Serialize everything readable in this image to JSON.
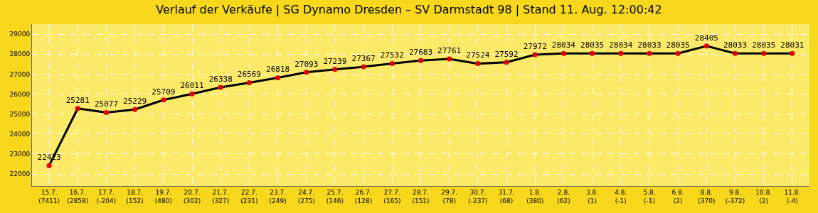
{
  "chart_data": {
    "type": "line",
    "title": "Verlauf der Verkäufe | SG Dynamo Dresden – SV Darmstadt 98 | Stand 11. Aug. 12:00:42",
    "categories": [
      "15.7.\n(7411)",
      "16.7.\n(2858)",
      "17.7.\n(-204)",
      "18.7.\n(152)",
      "19.7.\n(480)",
      "20.7.\n(302)",
      "21.7.\n(327)",
      "22.7.\n(231)",
      "23.7.\n(249)",
      "24.7.\n(275)",
      "25.7.\n(146)",
      "26.7.\n(128)",
      "27.7.\n(165)",
      "28.7.\n(151)",
      "29.7.\n(78)",
      "30.7.\n(-237)",
      "31.7.\n(68)",
      "1.8.\n(380)",
      "2.8.\n(62)",
      "3.8.\n(1)",
      "4.8.\n(-1)",
      "5.8.\n(-1)",
      "6.8.\n(2)",
      "8.8.\n(370)",
      "9.8.\n(-372)",
      "10.8.\n(2)",
      "11.8.\n(-4)"
    ],
    "series": [
      {
        "color": "#000000",
        "colors": [
          "#e00000",
          "#e00000",
          "#e00000",
          "#e00000",
          "#e00000",
          "#e00000",
          "#e00000",
          "#e00000",
          "#e00000",
          "#e00000",
          "#e00000",
          "#e00000",
          "#e00000",
          "#e00000",
          "#e00000",
          "#e00000",
          "#e00000",
          "#e00000",
          "#e00000",
          "#e00000",
          "#e00000",
          "#e00000",
          "#e00000",
          "#e00000",
          "#e00000",
          "#e00000",
          "#e00000"
        ],
        "values": [
          22423,
          25281,
          25077,
          25229,
          25709,
          26011,
          26338,
          26569,
          26818,
          27093,
          27239,
          27367,
          27532,
          27683,
          27761,
          27524,
          27592,
          27972,
          28034,
          28035,
          28034,
          28033,
          28035,
          28405,
          28033,
          28035,
          28031
        ]
      }
    ],
    "ylim": [
      21400,
      29500
    ],
    "yticks": [
      22000,
      23000,
      24000,
      25000,
      26000,
      27000,
      28000,
      29000
    ],
    "grid": true,
    "marker": "circle",
    "line_style": "solid",
    "data_labels": true,
    "legend": false
  }
}
